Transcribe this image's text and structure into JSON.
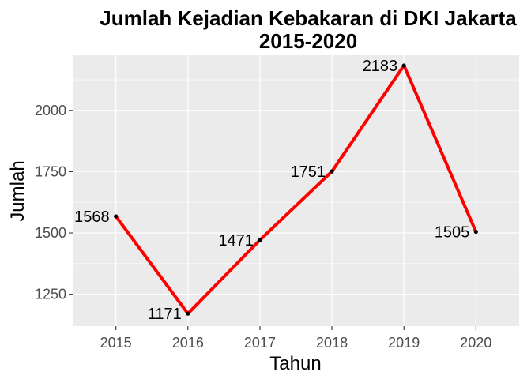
{
  "chart_data": {
    "type": "line",
    "title_line1": "Jumlah Kejadian Kebakaran di DKI Jakarta",
    "title_line2": "2015-2020",
    "xlabel": "Tahun",
    "ylabel": "Jumlah",
    "x": [
      2015,
      2016,
      2017,
      2018,
      2019,
      2020
    ],
    "values": [
      1568,
      1171,
      1471,
      1751,
      2183,
      1505
    ],
    "data_labels": [
      "1568",
      "1171",
      "1471",
      "1751",
      "2183",
      "1505"
    ],
    "x_ticks": [
      "2015",
      "2016",
      "2017",
      "2018",
      "2019",
      "2020"
    ],
    "y_ticks": [
      1250,
      1500,
      1750,
      2000
    ],
    "y_tick_labels": [
      "1250",
      "1500",
      "1750",
      "2000"
    ],
    "xlim": [
      2014.4,
      2020.6
    ],
    "ylim": [
      1120,
      2225
    ],
    "grid": true,
    "line_color": "#ff0000",
    "point_color": "#000000",
    "panel_background": "#ebebeb"
  }
}
